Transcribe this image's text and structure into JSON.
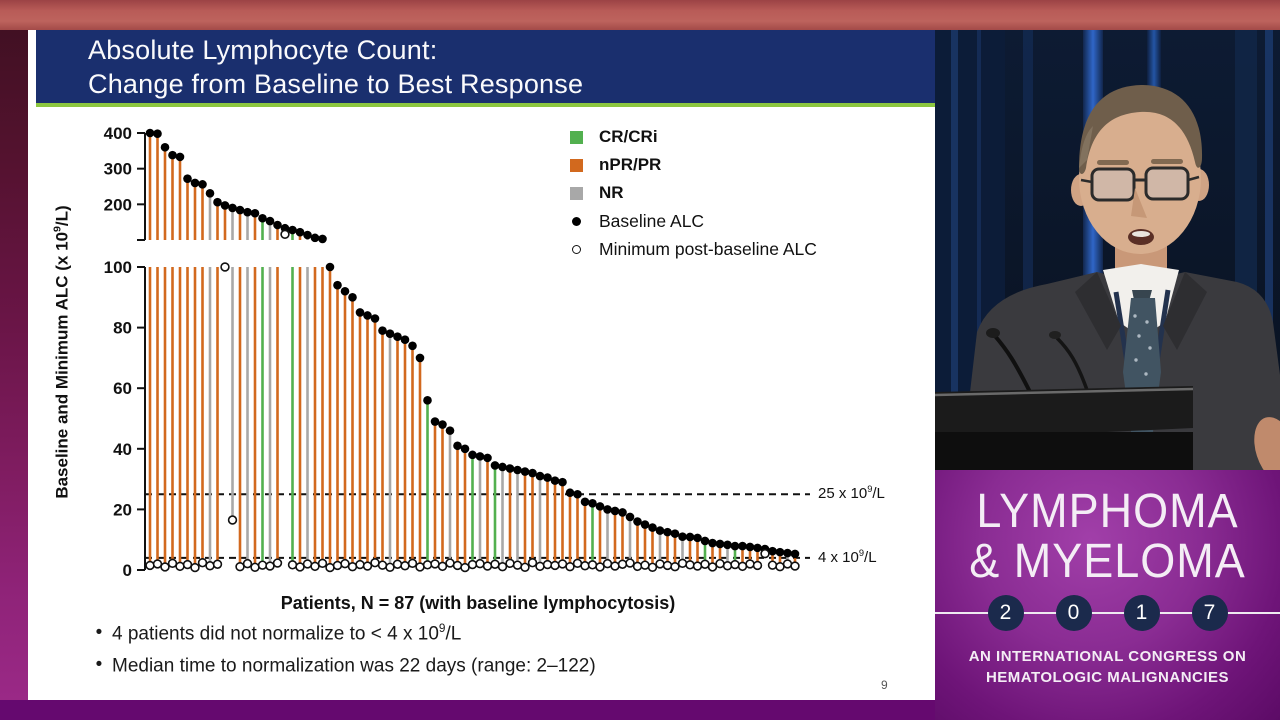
{
  "slide": {
    "title_lines": [
      "Absolute Lymphocyte Count:",
      "Change from Baseline to Best Response"
    ],
    "page_number": "9",
    "bullets": [
      {
        "pre": "4 patients did not normalize to < 4 x 10",
        "sup": "9",
        "post": "/L"
      },
      {
        "pre": "Median time to normalization was 22 days (range: 2–122)",
        "sup": "",
        "post": ""
      }
    ],
    "bullet_glyph": "•"
  },
  "chart_data": {
    "type": "bar",
    "subtype": "range-lollipop, broken y-axis",
    "title": "",
    "xlabel": "Patients, N = 87 (with baseline lymphocytosis)",
    "ylabel": {
      "pre": "Baseline and Minimum ALC (x 10",
      "sup": "9",
      "post": "/L)"
    },
    "axis_break": true,
    "top_panel": {
      "range": [
        100,
        400
      ],
      "ticks": [
        200,
        300,
        400
      ]
    },
    "bottom_panel": {
      "range": [
        0,
        100
      ],
      "ticks": [
        0,
        20,
        40,
        60,
        80,
        100
      ]
    },
    "grid": false,
    "legend_position": "top-right",
    "legend": [
      {
        "label": "CR/CRi",
        "swatch": "square",
        "color": "#52B04F",
        "code": "CR"
      },
      {
        "label": "nPR/PR",
        "swatch": "square",
        "color": "#D2691E",
        "code": "PR"
      },
      {
        "label": "NR",
        "swatch": "square",
        "color": "#A8A8A8",
        "code": "NR"
      },
      {
        "label": "Baseline ALC",
        "swatch": "filled-dot",
        "color": "#000000"
      },
      {
        "label": "Minimum post-baseline ALC",
        "swatch": "open-dot",
        "color": "#000000"
      }
    ],
    "reference_lines": [
      {
        "value": 25,
        "label": {
          "pre": "25 x 10",
          "sup": "9",
          "post": "/L"
        }
      },
      {
        "value": 4,
        "label": {
          "pre": "4 x 10",
          "sup": "9",
          "post": "/L"
        }
      }
    ],
    "patients_note": "each entry = [baseline ALC, minimum post-baseline ALC, response]",
    "patients": [
      [
        400,
        1.5,
        "PR"
      ],
      [
        398,
        2.0,
        "PR"
      ],
      [
        360,
        1.0,
        "PR"
      ],
      [
        338,
        2.2,
        "PR"
      ],
      [
        333,
        1.2,
        "PR"
      ],
      [
        272,
        1.8,
        "PR"
      ],
      [
        260,
        0.8,
        "PR"
      ],
      [
        256,
        2.4,
        "PR"
      ],
      [
        231,
        1.4,
        "NR"
      ],
      [
        206,
        1.9,
        "PR"
      ],
      [
        197,
        100,
        "PR"
      ],
      [
        190,
        16.5,
        "NR"
      ],
      [
        184,
        1.1,
        "PR"
      ],
      [
        178,
        2.1,
        "NR"
      ],
      [
        175,
        0.9,
        "PR"
      ],
      [
        161,
        1.6,
        "CR"
      ],
      [
        153,
        1.3,
        "NR"
      ],
      [
        142,
        2.3,
        "PR"
      ],
      [
        133,
        116,
        "PR"
      ],
      [
        128,
        1.7,
        "CR"
      ],
      [
        122,
        1.0,
        "PR"
      ],
      [
        114,
        2.0,
        "NR"
      ],
      [
        106,
        1.2,
        "PR"
      ],
      [
        103,
        2.2,
        "PR"
      ],
      [
        100,
        0.8,
        "PR"
      ],
      [
        94,
        1.5,
        "PR"
      ],
      [
        92,
        2.1,
        "PR"
      ],
      [
        90,
        1.1,
        "PR"
      ],
      [
        85,
        1.8,
        "PR"
      ],
      [
        84,
        1.3,
        "PR"
      ],
      [
        83,
        2.4,
        "PR"
      ],
      [
        79,
        1.6,
        "PR"
      ],
      [
        78,
        0.9,
        "NR"
      ],
      [
        77,
        1.9,
        "PR"
      ],
      [
        76,
        1.4,
        "PR"
      ],
      [
        74,
        2.2,
        "PR"
      ],
      [
        70,
        1.0,
        "PR"
      ],
      [
        56,
        1.7,
        "CR"
      ],
      [
        49,
        2.0,
        "PR"
      ],
      [
        48,
        1.2,
        "PR"
      ],
      [
        46,
        2.3,
        "NR"
      ],
      [
        41,
        1.5,
        "PR"
      ],
      [
        40,
        0.8,
        "PR"
      ],
      [
        38,
        1.8,
        "CR"
      ],
      [
        37.5,
        2.1,
        "NR"
      ],
      [
        37,
        1.3,
        "PR"
      ],
      [
        34.5,
        1.9,
        "CR"
      ],
      [
        34,
        1.1,
        "NR"
      ],
      [
        33.5,
        2.2,
        "PR"
      ],
      [
        33,
        1.6,
        "NR"
      ],
      [
        32.5,
        0.9,
        "PR"
      ],
      [
        32,
        2.4,
        "PR"
      ],
      [
        31,
        1.2,
        "NR"
      ],
      [
        30.5,
        1.8,
        "PR"
      ],
      [
        29.5,
        1.5,
        "PR"
      ],
      [
        29,
        2.0,
        "PR"
      ],
      [
        25.5,
        1.1,
        "PR"
      ],
      [
        25,
        2.2,
        "PR"
      ],
      [
        22.5,
        1.4,
        "PR"
      ],
      [
        22,
        1.7,
        "CR"
      ],
      [
        21,
        1.0,
        "PR"
      ],
      [
        20,
        2.1,
        "NR"
      ],
      [
        19.5,
        1.3,
        "PR"
      ],
      [
        19,
        1.9,
        "PR"
      ],
      [
        17.5,
        2.3,
        "NR"
      ],
      [
        16,
        1.2,
        "PR"
      ],
      [
        15,
        1.6,
        "PR"
      ],
      [
        14,
        0.9,
        "PR"
      ],
      [
        13,
        2.0,
        "NR"
      ],
      [
        12.5,
        1.5,
        "PR"
      ],
      [
        12,
        1.1,
        "PR"
      ],
      [
        11,
        2.2,
        "NR"
      ],
      [
        10.9,
        1.7,
        "PR"
      ],
      [
        10.6,
        1.3,
        "PR"
      ],
      [
        9.6,
        1.9,
        "CR"
      ],
      [
        8.9,
        1.0,
        "PR"
      ],
      [
        8.6,
        2.1,
        "PR"
      ],
      [
        8.3,
        1.4,
        "NR"
      ],
      [
        7.9,
        1.8,
        "CR"
      ],
      [
        7.9,
        1.2,
        "PR"
      ],
      [
        7.6,
        2.0,
        "PR"
      ],
      [
        7.3,
        1.5,
        "PR"
      ],
      [
        6.9,
        5.4,
        "PR"
      ],
      [
        6.2,
        1.6,
        "PR"
      ],
      [
        5.9,
        1.1,
        "PR"
      ],
      [
        5.6,
        2.0,
        "NR"
      ],
      [
        5.3,
        1.3,
        "PR"
      ]
    ]
  },
  "video": {
    "congress_line1": "LYMPHOMA",
    "congress_line2": "& MYELOMA",
    "year_digits": [
      "2",
      "0",
      "1",
      "7"
    ],
    "tagline_line1": "AN INTERNATIONAL CONGRESS ON",
    "tagline_line2": "HEMATOLOGIC MALIGNANCIES"
  },
  "colors": {
    "title_bar": "#1A2F6E",
    "accent_rule": "#8CC63F",
    "brand_purple": "#6E1478",
    "bottom_bar": "#65096F"
  }
}
